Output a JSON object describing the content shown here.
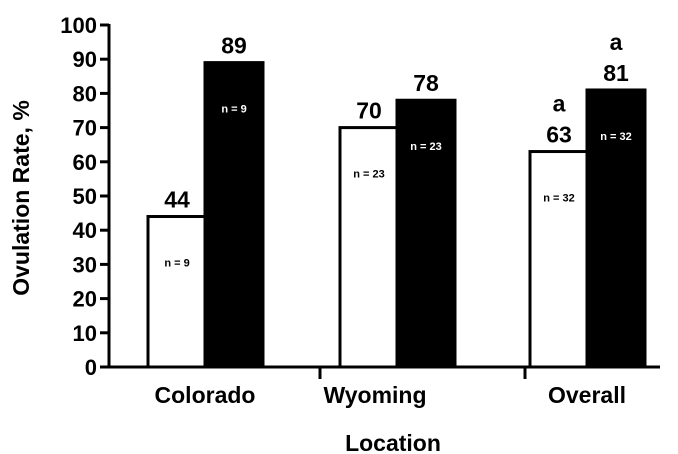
{
  "chart_data": {
    "type": "bar",
    "xlabel": "Location",
    "ylabel": "Ovulation Rate, %",
    "ylim": [
      0,
      100
    ],
    "yticks": [
      0,
      10,
      20,
      30,
      40,
      50,
      60,
      70,
      80,
      90,
      100
    ],
    "categories": [
      "Colorado",
      "Wyoming",
      "Overall"
    ],
    "grid": false,
    "legend": "none",
    "series": [
      {
        "color": "#ffffff",
        "values": [
          44,
          70,
          63
        ],
        "value_labels": [
          "44",
          "70",
          "63"
        ],
        "n_labels": [
          "n = 9",
          "n = 23",
          "n = 32"
        ],
        "superscripts": [
          "",
          "",
          "a"
        ]
      },
      {
        "color": "#000000",
        "values": [
          89,
          78,
          81
        ],
        "value_labels": [
          "89",
          "78",
          "81"
        ],
        "n_labels": [
          "n = 9",
          "n = 23",
          "n = 32"
        ],
        "superscripts": [
          "",
          "",
          "a"
        ]
      }
    ]
  }
}
